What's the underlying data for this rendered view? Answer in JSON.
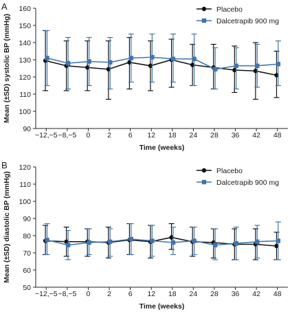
{
  "chart_data": [
    {
      "panel_label": "A",
      "type": "line",
      "ylabel": "Mean (±SD) systolic BP (mmHg)",
      "xlabel": "Time (weeks)",
      "categories": [
        "−12,−5",
        "−8,−5",
        "0",
        "2",
        "6",
        "12",
        "18",
        "24",
        "28",
        "36",
        "42",
        "48"
      ],
      "ylim": [
        90,
        160
      ],
      "yticks": [
        90,
        100,
        110,
        120,
        130,
        140,
        150,
        160
      ],
      "legend_position": "top-right",
      "series": [
        {
          "name": "Placebo",
          "color": "#111111",
          "marker": "circle",
          "values": [
            129.5,
            126.5,
            125.5,
            124.5,
            128.5,
            126.5,
            130.0,
            127.0,
            125.5,
            124.0,
            123.5,
            121.0
          ],
          "sd_low": [
            112,
            112,
            112,
            107,
            113,
            112,
            114,
            115,
            113,
            111,
            107,
            108
          ],
          "sd_high": [
            147,
            141,
            141,
            141,
            143,
            141,
            142,
            139,
            139,
            138,
            140,
            135
          ]
        },
        {
          "name": "Dalcetrapib 900 mg",
          "color": "#3f74ad",
          "marker": "square",
          "values": [
            131.0,
            128.0,
            129.0,
            128.5,
            131.0,
            131.5,
            130.5,
            130.5,
            124.5,
            126.5,
            126.5,
            127.5
          ],
          "sd_low": [
            115,
            113,
            115,
            113,
            117,
            117,
            117,
            115,
            113,
            113,
            114,
            115
          ],
          "sd_high": [
            147,
            143,
            143,
            143,
            145,
            145,
            145,
            145,
            137,
            137,
            139,
            141
          ]
        }
      ]
    },
    {
      "panel_label": "B",
      "type": "line",
      "ylabel": "Mean (±SD) diastolic BP (mmHg)",
      "xlabel": "Time (weeks)",
      "categories": [
        "−12,−5",
        "−8,−5",
        "0",
        "2",
        "6",
        "12",
        "18",
        "24",
        "28",
        "36",
        "42",
        "48"
      ],
      "ylim": [
        50,
        120
      ],
      "yticks": [
        50,
        60,
        70,
        80,
        90,
        100,
        110,
        120
      ],
      "legend_position": "top-right",
      "series": [
        {
          "name": "Placebo",
          "color": "#111111",
          "marker": "circle",
          "values": [
            77.0,
            76.5,
            76.5,
            76.0,
            77.5,
            76.5,
            79.0,
            76.5,
            76.0,
            75.0,
            75.0,
            74.0
          ],
          "sd_low": [
            69,
            68,
            68,
            67,
            69,
            67,
            72,
            68,
            67,
            66,
            66,
            66
          ],
          "sd_high": [
            86,
            85,
            84,
            85,
            87,
            86,
            87,
            85,
            84,
            84,
            84,
            82
          ]
        },
        {
          "name": "Dalcetrapib 900 mg",
          "color": "#3f74ad",
          "marker": "square",
          "values": [
            77.5,
            74.5,
            76.0,
            76.5,
            78.0,
            77.0,
            76.0,
            77.0,
            74.5,
            75.5,
            76.5,
            77.0
          ],
          "sd_low": [
            69,
            66,
            69,
            68,
            69,
            68,
            69,
            69,
            66,
            66,
            67,
            66
          ],
          "sd_high": [
            87,
            83,
            84,
            84,
            87,
            86,
            85,
            85,
            84,
            85,
            86,
            88
          ]
        }
      ]
    }
  ]
}
